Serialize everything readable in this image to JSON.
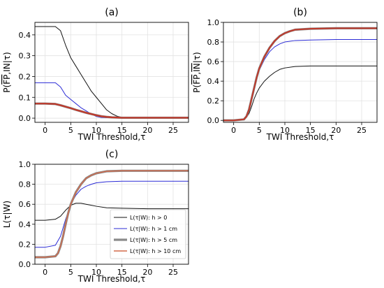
{
  "chart_data": [
    {
      "type": "line",
      "panel_label": "(a)",
      "xlabel": "TWI Threshold,τ",
      "ylabel_html": "P(<tspan text-decoration='overline'>FP</tspan>,IN|τ)",
      "ylabel": "P(FP,IN|τ)",
      "xlim": [
        -2,
        28
      ],
      "ylim": [
        -0.02,
        0.46
      ],
      "xticks": [
        0,
        5,
        10,
        15,
        20,
        25
      ],
      "yticks": [
        0.0,
        0.1,
        0.2,
        0.3,
        0.4
      ],
      "grid": true,
      "series": [
        {
          "color": "#111111",
          "width": 1.0,
          "x": [
            -2,
            0,
            2,
            3,
            4,
            5,
            6,
            7,
            8,
            9,
            10,
            11,
            12,
            13,
            14,
            15,
            17,
            20,
            25,
            28
          ],
          "y": [
            0.44,
            0.44,
            0.44,
            0.42,
            0.35,
            0.29,
            0.25,
            0.21,
            0.17,
            0.13,
            0.1,
            0.07,
            0.04,
            0.022,
            0.01,
            0.004,
            0.002,
            0.002,
            0.002,
            0.002
          ]
        },
        {
          "color": "#2b2bd6",
          "width": 1.0,
          "x": [
            -2,
            0,
            2,
            3,
            4,
            5,
            6,
            7,
            8,
            9,
            10,
            11,
            12,
            15,
            20,
            28
          ],
          "y": [
            0.17,
            0.17,
            0.17,
            0.15,
            0.11,
            0.09,
            0.07,
            0.05,
            0.035,
            0.02,
            0.008,
            0.003,
            0.002,
            0.002,
            0.002,
            0.002
          ]
        },
        {
          "color": "#8a8a8a",
          "width": 3.2,
          "x": [
            -2,
            0,
            2,
            3,
            4,
            5,
            6,
            7,
            8,
            9,
            10,
            11,
            12,
            13,
            14,
            15,
            17,
            20,
            25,
            28
          ],
          "y": [
            0.07,
            0.07,
            0.068,
            0.062,
            0.055,
            0.048,
            0.04,
            0.033,
            0.026,
            0.02,
            0.014,
            0.009,
            0.006,
            0.004,
            0.003,
            0.002,
            0.002,
            0.002,
            0.002,
            0.002
          ]
        },
        {
          "color": "#c0392b",
          "width": 2.2,
          "x": [
            -2,
            0,
            2,
            3,
            4,
            5,
            6,
            7,
            8,
            9,
            10,
            11,
            12,
            13,
            14,
            15,
            17,
            20,
            25,
            28
          ],
          "y": [
            0.07,
            0.07,
            0.068,
            0.062,
            0.055,
            0.048,
            0.04,
            0.033,
            0.026,
            0.02,
            0.014,
            0.009,
            0.006,
            0.004,
            0.003,
            0.002,
            0.002,
            0.002,
            0.002,
            0.002
          ]
        }
      ]
    },
    {
      "type": "line",
      "panel_label": "(b)",
      "xlabel": "TWI Threshold,τ",
      "ylabel_html": "P(<tspan text-decoration='overline'>FP</tspan>,<tspan text-decoration='overline'>IN</tspan>|τ)",
      "ylabel": "P(FP,IN|τ)",
      "xlim": [
        -2,
        28
      ],
      "ylim": [
        -0.02,
        1.0
      ],
      "xticks": [
        0,
        5,
        10,
        15,
        20,
        25
      ],
      "yticks": [
        0.0,
        0.2,
        0.4,
        0.6,
        0.8,
        1.0
      ],
      "grid": true,
      "series": [
        {
          "color": "#111111",
          "width": 1.0,
          "x": [
            -2,
            0,
            2,
            2.5,
            3,
            3.5,
            4,
            4.5,
            5,
            6,
            7,
            8,
            9,
            10,
            12,
            15,
            20,
            28
          ],
          "y": [
            0.0,
            0.0,
            0.01,
            0.03,
            0.07,
            0.14,
            0.22,
            0.28,
            0.33,
            0.4,
            0.45,
            0.49,
            0.52,
            0.535,
            0.55,
            0.555,
            0.555,
            0.555
          ]
        },
        {
          "color": "#2b2bd6",
          "width": 1.0,
          "x": [
            -2,
            0,
            2,
            2.5,
            3,
            3.5,
            4,
            4.5,
            5,
            6,
            7,
            8,
            9,
            10,
            12,
            15,
            20,
            28
          ],
          "y": [
            0.0,
            0.0,
            0.01,
            0.04,
            0.1,
            0.2,
            0.31,
            0.42,
            0.51,
            0.62,
            0.7,
            0.75,
            0.78,
            0.8,
            0.815,
            0.82,
            0.825,
            0.825
          ]
        },
        {
          "color": "#8a8a8a",
          "width": 3.2,
          "x": [
            -2,
            0,
            2,
            2.5,
            3,
            3.5,
            4,
            4.5,
            5,
            6,
            7,
            8,
            9,
            10,
            11,
            12,
            15,
            20,
            28
          ],
          "y": [
            0.0,
            0.0,
            0.01,
            0.04,
            0.11,
            0.22,
            0.33,
            0.44,
            0.53,
            0.65,
            0.74,
            0.81,
            0.86,
            0.89,
            0.91,
            0.925,
            0.935,
            0.94,
            0.94
          ]
        },
        {
          "color": "#c0392b",
          "width": 2.0,
          "x": [
            -2,
            0,
            2,
            2.5,
            3,
            3.5,
            4,
            4.5,
            5,
            6,
            7,
            8,
            9,
            10,
            11,
            12,
            15,
            20,
            28
          ],
          "y": [
            0.0,
            0.0,
            0.01,
            0.04,
            0.11,
            0.22,
            0.33,
            0.44,
            0.53,
            0.65,
            0.74,
            0.81,
            0.86,
            0.89,
            0.91,
            0.925,
            0.935,
            0.94,
            0.94
          ]
        }
      ]
    },
    {
      "type": "line",
      "panel_label": "(c)",
      "xlabel": "TWI Threshold,τ",
      "ylabel_html": "L(τ|W)",
      "ylabel": "L(τ|W)",
      "xlim": [
        -2,
        28
      ],
      "ylim": [
        0.0,
        1.0
      ],
      "xticks": [
        0,
        5,
        10,
        15,
        20,
        25
      ],
      "yticks": [
        0.0,
        0.2,
        0.4,
        0.6,
        0.8,
        1.0
      ],
      "grid": true,
      "legend_position": "lower-right",
      "series": [
        {
          "name": "L(τ|W): h > 0",
          "color": "#111111",
          "width": 1.0,
          "x": [
            -2,
            0,
            2,
            3,
            4,
            5,
            6,
            7,
            8,
            9,
            10,
            12,
            15,
            20,
            28
          ],
          "y": [
            0.44,
            0.44,
            0.45,
            0.48,
            0.54,
            0.59,
            0.61,
            0.61,
            0.6,
            0.59,
            0.58,
            0.565,
            0.56,
            0.555,
            0.555
          ]
        },
        {
          "name": "L(τ|W): h > 1 cm",
          "color": "#2b2bd6",
          "width": 1.0,
          "x": [
            -2,
            0,
            2,
            3,
            4,
            5,
            6,
            7,
            8,
            9,
            10,
            12,
            15,
            20,
            28
          ],
          "y": [
            0.17,
            0.17,
            0.19,
            0.28,
            0.45,
            0.6,
            0.69,
            0.75,
            0.78,
            0.8,
            0.815,
            0.825,
            0.83,
            0.83,
            0.83
          ]
        },
        {
          "name": "L(τ|W): h > 5 cm",
          "color": "#8a8a8a",
          "width": 3.2,
          "x": [
            -2,
            0,
            2,
            2.5,
            3,
            3.5,
            4,
            4.5,
            5,
            6,
            7,
            8,
            9,
            10,
            11,
            12,
            15,
            20,
            28
          ],
          "y": [
            0.07,
            0.07,
            0.08,
            0.11,
            0.18,
            0.28,
            0.4,
            0.51,
            0.6,
            0.72,
            0.8,
            0.86,
            0.89,
            0.91,
            0.92,
            0.93,
            0.935,
            0.935,
            0.935
          ]
        },
        {
          "name": "L(τ|W): h > 10 cm",
          "color": "#d46a4a",
          "width": 1.4,
          "x": [
            -2,
            0,
            2,
            2.5,
            3,
            3.5,
            4,
            4.5,
            5,
            6,
            7,
            8,
            9,
            10,
            11,
            12,
            15,
            20,
            28
          ],
          "y": [
            0.07,
            0.07,
            0.08,
            0.11,
            0.18,
            0.28,
            0.4,
            0.51,
            0.6,
            0.72,
            0.8,
            0.86,
            0.89,
            0.91,
            0.92,
            0.93,
            0.935,
            0.935,
            0.935
          ]
        }
      ]
    }
  ]
}
